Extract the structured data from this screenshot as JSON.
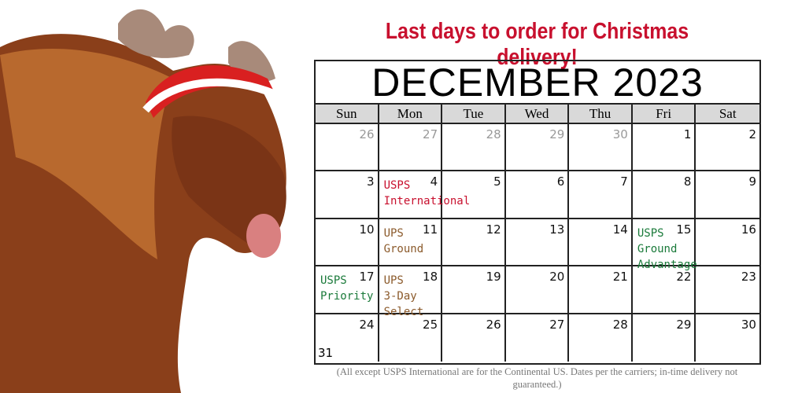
{
  "headline": "Last days to order for Christmas delivery!",
  "calendar": {
    "month_title": "DECEMBER 2023",
    "weekdays": [
      "Sun",
      "Mon",
      "Tue",
      "Wed",
      "Thu",
      "Fri",
      "Sat"
    ],
    "days": [
      {
        "n": "26",
        "other": true
      },
      {
        "n": "27",
        "other": true
      },
      {
        "n": "28",
        "other": true
      },
      {
        "n": "29",
        "other": true
      },
      {
        "n": "30",
        "other": true
      },
      {
        "n": "1"
      },
      {
        "n": "2"
      },
      {
        "n": "3"
      },
      {
        "n": "4",
        "note": [
          "USPS",
          "International"
        ],
        "color": "#c8102e"
      },
      {
        "n": "5"
      },
      {
        "n": "6"
      },
      {
        "n": "7"
      },
      {
        "n": "8"
      },
      {
        "n": "9"
      },
      {
        "n": "10"
      },
      {
        "n": "11",
        "note": [
          "UPS",
          "Ground"
        ],
        "color": "#8b5a2b"
      },
      {
        "n": "12"
      },
      {
        "n": "13"
      },
      {
        "n": "14"
      },
      {
        "n": "15",
        "note": [
          "USPS",
          "Ground",
          "Advantage"
        ],
        "color": "#1a7a3a"
      },
      {
        "n": "16"
      },
      {
        "n": "17",
        "note": [
          "USPS",
          "Priority"
        ],
        "color": "#1a7a3a"
      },
      {
        "n": "18",
        "note": [
          "UPS",
          "3-Day",
          "Select"
        ],
        "color": "#8b5a2b"
      },
      {
        "n": "19"
      },
      {
        "n": "20"
      },
      {
        "n": "21"
      },
      {
        "n": "22"
      },
      {
        "n": "23"
      },
      {
        "n": "24",
        "extra": "31"
      },
      {
        "n": "25"
      },
      {
        "n": "26"
      },
      {
        "n": "27"
      },
      {
        "n": "28"
      },
      {
        "n": "29"
      },
      {
        "n": "30"
      }
    ]
  },
  "footnote": "(All except USPS International are for the Continental US. Dates per the carriers; in-time delivery not guaranteed.)",
  "colors": {
    "headline": "#c8102e",
    "usps_international": "#c8102e",
    "ups": "#8b5a2b",
    "usps": "#1a7a3a",
    "header_bg": "#d9d9d9"
  }
}
